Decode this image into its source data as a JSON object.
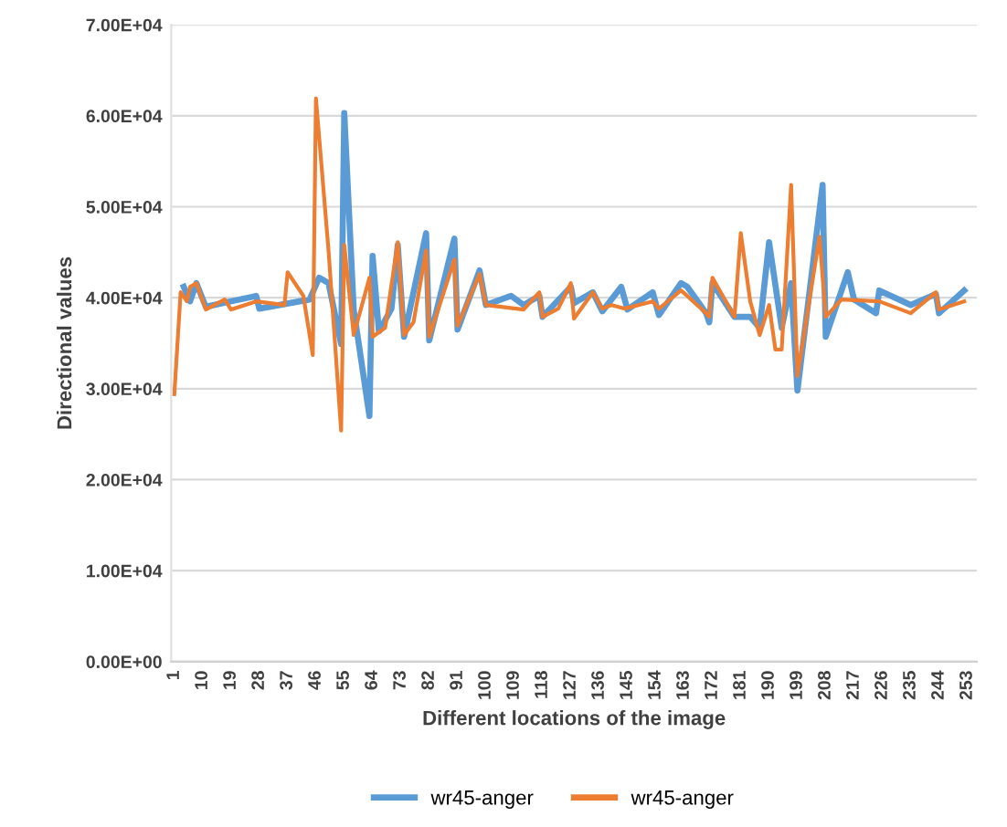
{
  "chart_data": {
    "type": "line",
    "xlabel": "Different locations of the image",
    "ylabel": "Directional values",
    "xlim": [
      0,
      256
    ],
    "xticks": [
      1,
      10,
      19,
      28,
      37,
      46,
      55,
      64,
      73,
      82,
      91,
      100,
      109,
      118,
      127,
      136,
      145,
      154,
      163,
      172,
      181,
      190,
      199,
      208,
      217,
      226,
      235,
      244,
      253
    ],
    "ylim": [
      0,
      70000
    ],
    "yticks": [
      {
        "value": 0,
        "label": "0.00E+00"
      },
      {
        "value": 10000,
        "label": "1.00E+04"
      },
      {
        "value": 20000,
        "label": "2.00E+04"
      },
      {
        "value": 30000,
        "label": "3.00E+04"
      },
      {
        "value": 40000,
        "label": "4.00E+04"
      },
      {
        "value": 50000,
        "label": "5.00E+04"
      },
      {
        "value": 60000,
        "label": "6.00E+04"
      },
      {
        "value": 70000,
        "label": "7.00E+04"
      }
    ],
    "grid": "y",
    "legend": "bottom",
    "marker": "none",
    "line_style": "solid",
    "series": [
      {
        "name": "wr45-anger",
        "color": "#5b9bd5",
        "x": [
          4,
          6,
          8,
          11,
          27,
          28,
          44,
          47,
          50,
          54,
          55,
          58,
          63,
          64,
          66,
          70,
          72,
          74,
          81,
          82,
          90,
          91,
          98,
          100,
          108,
          112,
          117,
          118,
          127,
          128,
          134,
          137,
          143,
          145,
          153,
          155,
          162,
          164,
          170,
          171,
          172,
          179,
          184,
          187,
          190,
          194,
          197,
          199,
          207,
          208,
          215,
          217,
          224,
          225,
          235,
          243,
          244,
          252
        ],
        "values": [
          41200,
          39600,
          41600,
          39000,
          40200,
          38800,
          39800,
          42200,
          41600,
          34900,
          60300,
          38700,
          27000,
          44600,
          36300,
          38800,
          45800,
          35700,
          47100,
          35300,
          46500,
          36500,
          43000,
          39200,
          40200,
          39200,
          40200,
          37900,
          41200,
          39400,
          40600,
          38500,
          41200,
          38700,
          40600,
          38100,
          41600,
          41200,
          38300,
          37300,
          41600,
          37900,
          37900,
          36700,
          46100,
          36700,
          41600,
          29800,
          52400,
          35700,
          42800,
          39800,
          38300,
          40800,
          39200,
          40400,
          38300,
          40800
        ]
      },
      {
        "name": "wr45-anger",
        "color": "#ed7d31",
        "x": [
          1,
          3,
          5,
          6,
          8,
          11,
          17,
          19,
          27,
          36,
          37,
          42,
          45,
          46,
          50,
          54,
          55,
          58,
          63,
          64,
          68,
          72,
          74,
          77,
          81,
          82,
          90,
          91,
          98,
          100,
          112,
          117,
          118,
          123,
          127,
          128,
          134,
          137,
          140,
          144,
          153,
          155,
          162,
          164,
          170,
          171,
          172,
          179,
          181,
          184,
          187,
          190,
          192,
          194,
          197,
          199,
          206,
          208,
          213,
          225,
          235,
          243,
          244,
          252
        ],
        "values": [
          29400,
          40600,
          39600,
          41200,
          41600,
          38700,
          39800,
          38700,
          39600,
          39200,
          42800,
          40200,
          33700,
          61900,
          45200,
          25400,
          45800,
          35900,
          42200,
          35700,
          36700,
          46100,
          35900,
          37300,
          45200,
          35700,
          44200,
          36900,
          42600,
          39200,
          38700,
          40600,
          37900,
          38800,
          41600,
          37700,
          40600,
          38800,
          39200,
          38800,
          39600,
          38800,
          40800,
          40200,
          38300,
          37900,
          42200,
          37900,
          47100,
          39600,
          35900,
          39200,
          34300,
          34300,
          52400,
          31400,
          46700,
          37900,
          39800,
          39600,
          38300,
          40600,
          38700,
          39600
        ]
      }
    ]
  }
}
